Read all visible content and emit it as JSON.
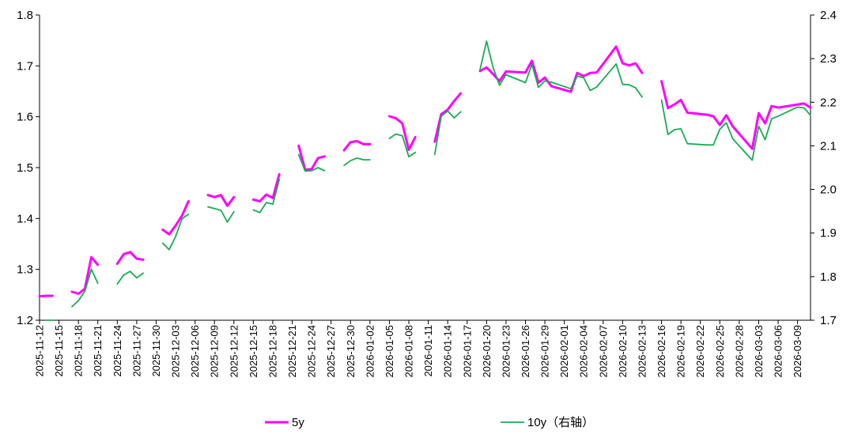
{
  "chart_data": {
    "type": "line",
    "title": "",
    "xlabel": "",
    "ylabel_left": "",
    "ylabel_right": "",
    "ylim_left": [
      1.2,
      1.8
    ],
    "ylim_right": [
      1.7,
      2.4
    ],
    "yticks_left": [
      "1.2",
      "1.3",
      "1.4",
      "1.5",
      "1.6",
      "1.7",
      "1.8"
    ],
    "yticks_right": [
      "1.7",
      "1.8",
      "1.9",
      "2.0",
      "2.1",
      "2.2",
      "2.3",
      "2.4"
    ],
    "x_ticks": [
      "2025-11-12",
      "2025-11-15",
      "2025-11-18",
      "2025-11-21",
      "2025-11-24",
      "2025-11-27",
      "2025-11-30",
      "2025-12-03",
      "2025-12-06",
      "2025-12-09",
      "2025-12-12",
      "2025-12-15",
      "2025-12-18",
      "2025-12-21",
      "2025-12-24",
      "2025-12-27",
      "2025-12-30",
      "2026-01-02",
      "2026-01-05",
      "2026-01-08",
      "2026-01-11",
      "2026-01-14",
      "2026-01-17",
      "2026-01-20",
      "2026-01-23",
      "2026-01-26",
      "2026-01-29",
      "2026-02-01",
      "2026-02-04",
      "2026-02-07",
      "2026-02-10",
      "2026-02-13",
      "2026-02-16",
      "2026-02-19",
      "2026-02-22",
      "2026-02-25",
      "2026-02-28",
      "2026-03-03",
      "2026-03-06",
      "2026-03-09"
    ],
    "legend_position": "bottom",
    "grid": false,
    "series": [
      {
        "name": "5y",
        "axis": "left",
        "color": "#ff00ff",
        "segments": [
          [
            [
              "2025-11-12",
              1.247
            ],
            [
              "2025-11-13",
              1.248
            ],
            [
              "2025-11-14",
              1.248
            ]
          ],
          [
            [
              "2025-11-17",
              1.256
            ],
            [
              "2025-11-18",
              1.252
            ],
            [
              "2025-11-19",
              1.262
            ],
            [
              "2025-11-20",
              1.324
            ],
            [
              "2025-11-21",
              1.309
            ]
          ],
          [
            [
              "2025-11-24",
              1.311
            ],
            [
              "2025-11-25",
              1.33
            ],
            [
              "2025-11-26",
              1.334
            ],
            [
              "2025-11-27",
              1.321
            ],
            [
              "2025-11-28",
              1.319
            ]
          ],
          [
            [
              "2025-12-01",
              1.378
            ],
            [
              "2025-12-02",
              1.369
            ],
            [
              "2025-12-03",
              1.386
            ],
            [
              "2025-12-04",
              1.406
            ],
            [
              "2025-12-05",
              1.434
            ]
          ],
          [
            [
              "2025-12-08",
              1.446
            ],
            [
              "2025-12-09",
              1.442
            ],
            [
              "2025-12-10",
              1.446
            ],
            [
              "2025-12-11",
              1.425
            ],
            [
              "2025-12-12",
              1.442
            ]
          ],
          [
            [
              "2025-12-15",
              1.437
            ],
            [
              "2025-12-16",
              1.434
            ],
            [
              "2025-12-17",
              1.447
            ],
            [
              "2025-12-18",
              1.44
            ],
            [
              "2025-12-19",
              1.487
            ]
          ],
          [
            [
              "2025-12-22",
              1.543
            ],
            [
              "2025-12-23",
              1.496
            ],
            [
              "2025-12-24",
              1.497
            ],
            [
              "2025-12-25",
              1.519
            ],
            [
              "2025-12-26",
              1.522
            ]
          ],
          [
            [
              "2025-12-29",
              1.534
            ],
            [
              "2025-12-30",
              1.55
            ],
            [
              "2025-12-31",
              1.552
            ],
            [
              "2026-01-01",
              1.546
            ],
            [
              "2026-01-02",
              1.546
            ]
          ],
          [
            [
              "2026-01-05",
              1.601
            ],
            [
              "2026-01-06",
              1.597
            ],
            [
              "2026-01-07",
              1.587
            ],
            [
              "2026-01-08",
              1.535
            ],
            [
              "2026-01-09",
              1.56
            ]
          ],
          [
            [
              "2026-01-12",
              1.551
            ],
            [
              "2026-01-13",
              1.605
            ],
            [
              "2026-01-14",
              1.614
            ],
            [
              "2026-01-15",
              1.631
            ],
            [
              "2026-01-16",
              1.646
            ]
          ],
          [
            [
              "2026-01-19",
              1.69
            ],
            [
              "2026-01-20",
              1.697
            ],
            [
              "2026-01-21",
              1.684
            ],
            [
              "2026-01-22",
              1.67
            ],
            [
              "2026-01-23",
              1.689
            ],
            [
              "2026-01-26",
              1.687
            ],
            [
              "2026-01-27",
              1.71
            ],
            [
              "2026-01-28",
              1.667
            ],
            [
              "2026-01-29",
              1.677
            ],
            [
              "2026-01-30",
              1.66
            ],
            [
              "2026-02-02",
              1.649
            ],
            [
              "2026-02-03",
              1.686
            ],
            [
              "2026-02-04",
              1.68
            ],
            [
              "2026-02-05",
              1.686
            ],
            [
              "2026-02-06",
              1.687
            ],
            [
              "2026-02-09",
              1.738
            ],
            [
              "2026-02-10",
              1.705
            ],
            [
              "2026-02-11",
              1.701
            ],
            [
              "2026-02-12",
              1.705
            ],
            [
              "2026-02-13",
              1.686
            ]
          ],
          [
            [
              "2026-02-16",
              1.67
            ],
            [
              "2026-02-17",
              1.617
            ],
            [
              "2026-02-18",
              1.624
            ],
            [
              "2026-02-19",
              1.633
            ],
            [
              "2026-02-20",
              1.608
            ],
            [
              "2026-02-23",
              1.604
            ],
            [
              "2026-02-24",
              1.601
            ],
            [
              "2026-02-25",
              1.584
            ],
            [
              "2026-02-26",
              1.603
            ],
            [
              "2026-02-27",
              1.581
            ],
            [
              "2026-03-02",
              1.537
            ],
            [
              "2026-03-03",
              1.607
            ],
            [
              "2026-03-04",
              1.587
            ],
            [
              "2026-03-05",
              1.621
            ],
            [
              "2026-03-06",
              1.618
            ],
            [
              "2026-03-09",
              1.624
            ],
            [
              "2026-03-10",
              1.626
            ],
            [
              "2026-03-11",
              1.618
            ]
          ]
        ]
      },
      {
        "name": "10y（右轴）",
        "axis": "right",
        "color": "#1aab54",
        "segments": [
          [
            [
              "2025-11-13",
              1.7
            ],
            [
              "2025-11-14",
              1.7
            ]
          ],
          [
            [
              "2025-11-17",
              1.731
            ],
            [
              "2025-11-18",
              1.745
            ],
            [
              "2025-11-19",
              1.767
            ],
            [
              "2025-11-20",
              1.817
            ],
            [
              "2025-11-21",
              1.785
            ]
          ],
          [
            [
              "2025-11-24",
              1.783
            ],
            [
              "2025-11-25",
              1.804
            ],
            [
              "2025-11-26",
              1.812
            ],
            [
              "2025-11-27",
              1.797
            ],
            [
              "2025-11-28",
              1.808
            ]
          ],
          [
            [
              "2025-12-01",
              1.877
            ],
            [
              "2025-12-02",
              1.862
            ],
            [
              "2025-12-03",
              1.892
            ],
            [
              "2025-12-04",
              1.933
            ],
            [
              "2025-12-05",
              1.943
            ]
          ],
          [
            [
              "2025-12-08",
              1.96
            ],
            [
              "2025-12-09",
              1.956
            ],
            [
              "2025-12-10",
              1.952
            ],
            [
              "2025-12-11",
              1.925
            ],
            [
              "2025-12-12",
              1.949
            ]
          ],
          [
            [
              "2025-12-15",
              1.953
            ],
            [
              "2025-12-16",
              1.947
            ],
            [
              "2025-12-17",
              1.97
            ],
            [
              "2025-12-18",
              1.966
            ],
            [
              "2025-12-19",
              2.023
            ]
          ],
          [
            [
              "2025-12-22",
              2.08
            ],
            [
              "2025-12-23",
              2.042
            ],
            [
              "2025-12-24",
              2.043
            ],
            [
              "2025-12-25",
              2.05
            ],
            [
              "2025-12-26",
              2.043
            ]
          ],
          [
            [
              "2025-12-29",
              2.055
            ],
            [
              "2025-12-30",
              2.066
            ],
            [
              "2025-12-31",
              2.072
            ],
            [
              "2026-01-01",
              2.068
            ],
            [
              "2026-01-02",
              2.068
            ]
          ],
          [
            [
              "2026-01-05",
              2.117
            ],
            [
              "2026-01-06",
              2.127
            ],
            [
              "2026-01-07",
              2.123
            ],
            [
              "2026-01-08",
              2.075
            ],
            [
              "2026-01-09",
              2.085
            ]
          ],
          [
            [
              "2026-01-12",
              2.08
            ],
            [
              "2026-01-13",
              2.168
            ],
            [
              "2026-01-14",
              2.18
            ],
            [
              "2026-01-15",
              2.164
            ],
            [
              "2026-01-16",
              2.178
            ]
          ],
          [
            [
              "2026-01-19",
              2.275
            ],
            [
              "2026-01-20",
              2.34
            ],
            [
              "2026-01-21",
              2.28
            ],
            [
              "2026-01-22",
              2.239
            ],
            [
              "2026-01-23",
              2.263
            ],
            [
              "2026-01-26",
              2.245
            ],
            [
              "2026-01-27",
              2.287
            ],
            [
              "2026-01-28",
              2.234
            ],
            [
              "2026-01-29",
              2.249
            ],
            [
              "2026-01-30",
              2.246
            ],
            [
              "2026-02-02",
              2.231
            ],
            [
              "2026-02-03",
              2.26
            ],
            [
              "2026-02-04",
              2.256
            ],
            [
              "2026-02-05",
              2.227
            ],
            [
              "2026-02-06",
              2.235
            ],
            [
              "2026-02-09",
              2.288
            ],
            [
              "2026-02-10",
              2.241
            ],
            [
              "2026-02-11",
              2.24
            ],
            [
              "2026-02-12",
              2.233
            ],
            [
              "2026-02-13",
              2.212
            ]
          ],
          [
            [
              "2026-02-16",
              2.205
            ],
            [
              "2026-02-17",
              2.126
            ],
            [
              "2026-02-18",
              2.137
            ],
            [
              "2026-02-19",
              2.139
            ],
            [
              "2026-02-20",
              2.105
            ],
            [
              "2026-02-23",
              2.102
            ],
            [
              "2026-02-24",
              2.102
            ],
            [
              "2026-02-25",
              2.138
            ],
            [
              "2026-02-26",
              2.153
            ],
            [
              "2026-02-27",
              2.116
            ],
            [
              "2026-03-02",
              2.067
            ],
            [
              "2026-03-03",
              2.145
            ],
            [
              "2026-03-04",
              2.114
            ],
            [
              "2026-03-05",
              2.162
            ],
            [
              "2026-03-06",
              2.168
            ],
            [
              "2026-03-09",
              2.189
            ],
            [
              "2026-03-10",
              2.187
            ],
            [
              "2026-03-11",
              2.17
            ]
          ]
        ]
      }
    ]
  }
}
